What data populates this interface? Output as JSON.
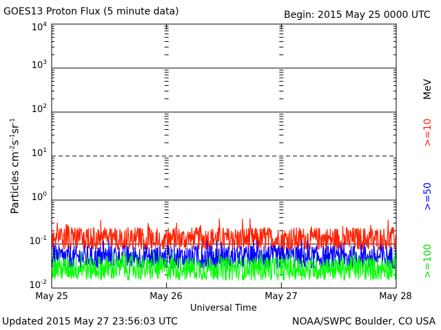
{
  "header": {
    "title": "GOES13 Proton Flux (5 minute data)",
    "begin": "Begin: 2015 May 25 0000 UTC"
  },
  "footer": {
    "updated": "Updated 2015 May 27 23:56:03 UTC",
    "credit": "NOAA/SWPC Boulder, CO USA"
  },
  "chart_data": {
    "type": "line",
    "xlabel": "Universal Time",
    "ylabel_base": "Particles cm",
    "ylabel_exp1": "-2",
    "ylabel_mid1": "s",
    "ylabel_exp2": "-1",
    "ylabel_mid2": "sr",
    "ylabel_exp3": "-1",
    "x_ticks": [
      "May 25",
      "May 26",
      "May 27",
      "May 28"
    ],
    "y_scale": "log",
    "y_tick_exponents": [
      "-2",
      "-1",
      "0",
      "1",
      "2",
      "3",
      "4"
    ],
    "ylim": [
      0.01,
      10000
    ],
    "xlim_days": [
      0,
      3
    ],
    "grid_lines_solid": [
      0.1,
      1,
      100,
      1000,
      10000
    ],
    "grid_lines_dashed": [
      10
    ],
    "unit_label": "MeV",
    "series": [
      {
        "name": ">=10",
        "color": "#ff2000",
        "baseline": 0.13,
        "min": 0.075,
        "max": 0.38
      },
      {
        "name": ">=50",
        "color": "#0000ff",
        "baseline": 0.05,
        "min": 0.028,
        "max": 0.12
      },
      {
        "name": ">=100",
        "color": "#00ff00",
        "baseline": 0.028,
        "min": 0.015,
        "max": 0.065
      }
    ]
  }
}
